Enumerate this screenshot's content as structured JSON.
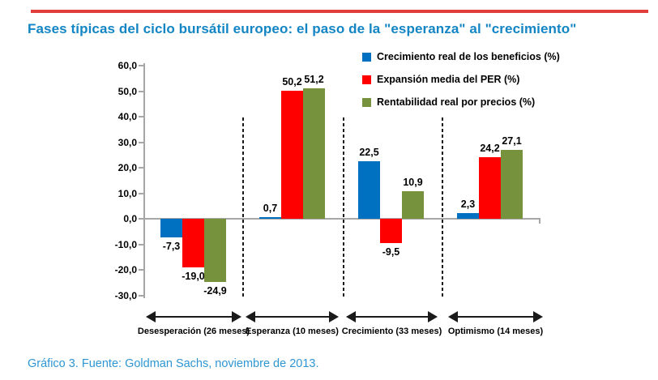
{
  "page": {
    "title": "Fases típicas del ciclo bursátil europeo: el paso de la \"esperanza\" al \"crecimiento\"",
    "footer": "Gráfico 3. Fuente: Goldman Sachs, noviembre de 2013.",
    "colors": {
      "title_blue": "#1385c4",
      "footer_blue": "#2e96d3",
      "top_rule_red": "#e23d3d",
      "axis_gray": "#a6a6a6",
      "separator_black": "#1a1a1a"
    }
  },
  "chart_data": {
    "type": "bar",
    "title": "",
    "xlabel": "",
    "ylabel": "",
    "categories": [
      "Desesperación (26 meses)",
      "Esperanza (10 meses)",
      "Crecimiento (33 meses)",
      "Optimismo (14 meses)"
    ],
    "series": [
      {
        "name": "Crecimiento real de los beneficios (%)",
        "color": "#0070c0",
        "values": [
          -7.3,
          0.7,
          22.5,
          2.3
        ],
        "labels": [
          "-7,3",
          "0,7",
          "22,5",
          "2,3"
        ]
      },
      {
        "name": "Expansión media del PER (%)",
        "color": "#ff0000",
        "values": [
          -19.0,
          50.2,
          -9.5,
          24.2
        ],
        "labels": [
          "-19,0",
          "50,2",
          "-9,5",
          "24,2"
        ]
      },
      {
        "name": "Rentabilidad real por precios (%)",
        "color": "#76923c",
        "values": [
          -24.9,
          51.2,
          10.9,
          27.1
        ],
        "labels": [
          "-24,9",
          "51,2",
          "10,9",
          "27,1"
        ]
      }
    ],
    "ylim": [
      -30,
      60
    ],
    "ytick_step": 10,
    "ytick_labels": [
      "60,0",
      "50,0",
      "40,0",
      "30,0",
      "20,0",
      "10,0",
      "0,0",
      "-10,0",
      "-20,0",
      "-30,0"
    ],
    "grid": false,
    "legend_position": "top-right",
    "decimal_separator": ","
  }
}
